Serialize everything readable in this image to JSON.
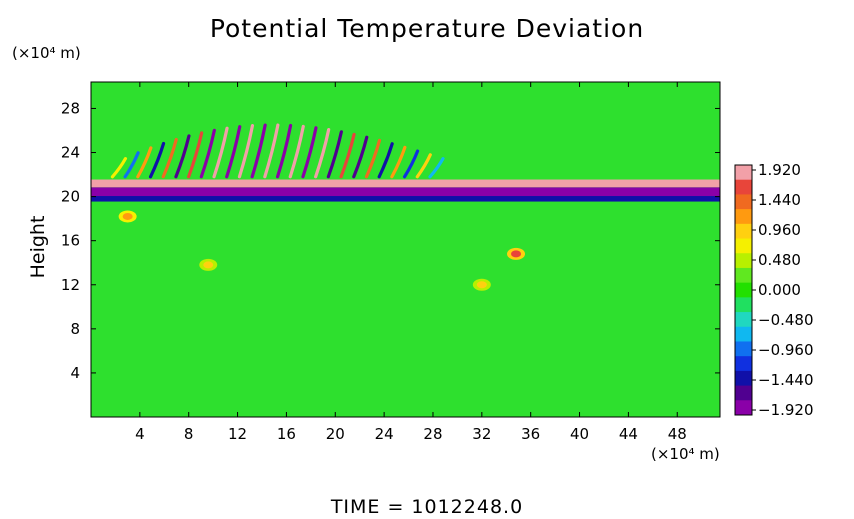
{
  "chart_data": {
    "type": "heatmap",
    "title": "Potential Temperature Deviation",
    "ylabel": "Height",
    "x_unit_label": "(×10⁴ m)",
    "y_unit_label": "(×10⁴ m)",
    "footer": "TIME  =  1012248.0",
    "x_ticks": [
      "4",
      "8",
      "12",
      "16",
      "20",
      "24",
      "28",
      "32",
      "36",
      "40",
      "44",
      "48"
    ],
    "y_ticks": [
      "4",
      "8",
      "12",
      "16",
      "20",
      "24",
      "28"
    ],
    "xlim": [
      0,
      51.5
    ],
    "ylim": [
      0,
      30.4
    ],
    "colorbar": {
      "ticks": [
        "1.920",
        "1.440",
        "0.960",
        "0.480",
        "0.000",
        "−0.480",
        "−0.960",
        "−1.440",
        "−1.920"
      ],
      "range": [
        -1.92,
        1.92
      ],
      "colors": [
        "#f2a0a8",
        "#e8453a",
        "#f06a20",
        "#ff9a10",
        "#ffd010",
        "#f5f000",
        "#b8f000",
        "#60e820",
        "#22e000",
        "#20e060",
        "#20d8c0",
        "#10b8f0",
        "#1070f0",
        "#1030e0",
        "#1010a8",
        "#500090",
        "#8a00a8"
      ]
    },
    "background_color": "#2ee02e",
    "field_features": [
      {
        "kind": "band",
        "y_center": 20.4,
        "thickness": 0.9,
        "value": -1.92,
        "label": "lower-jet-core"
      },
      {
        "kind": "band",
        "y_center": 21.2,
        "thickness": 0.7,
        "value": 1.92,
        "label": "upper-jet-core"
      },
      {
        "kind": "band",
        "y_center": 19.8,
        "thickness": 0.5,
        "value": -1.44,
        "label": "lower-jet-edge"
      },
      {
        "kind": "wavepacket",
        "x_range": [
          2,
          28
        ],
        "y_range": [
          21.8,
          26.5
        ],
        "amplitude": 1.9,
        "label": "gravity-waves"
      },
      {
        "kind": "blob",
        "x": 34.8,
        "y": 14.8,
        "value": 1.6
      },
      {
        "kind": "blob",
        "x": 9.6,
        "y": 13.8,
        "value": 0.9
      },
      {
        "kind": "blob",
        "x": 32.0,
        "y": 12.0,
        "value": 0.9
      },
      {
        "kind": "blob",
        "x": 3.0,
        "y": 18.2,
        "value": 1.2
      }
    ]
  }
}
